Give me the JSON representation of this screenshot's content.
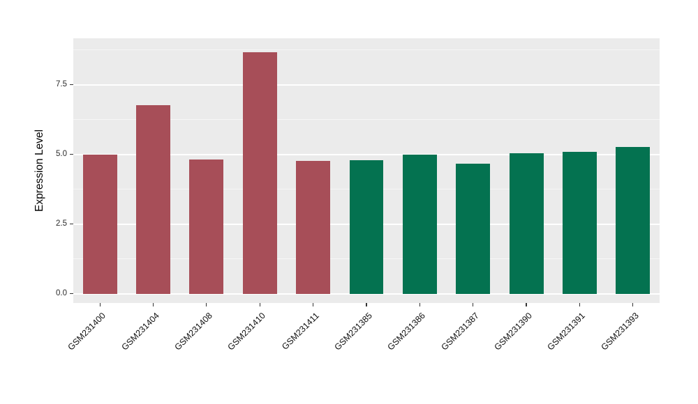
{
  "chart_data": {
    "type": "bar",
    "title": "",
    "xlabel": "",
    "ylabel": "Expression Level",
    "categories": [
      "GSM231400",
      "GSM231404",
      "GSM231408",
      "GSM231410",
      "GSM231411",
      "GSM231385",
      "GSM231386",
      "GSM231387",
      "GSM231390",
      "GSM231391",
      "GSM231393"
    ],
    "values": [
      5.0,
      6.78,
      4.82,
      8.68,
      4.77,
      4.8,
      5.0,
      4.66,
      5.05,
      5.1,
      5.26
    ],
    "bar_colors": [
      "#A74E58",
      "#A74E58",
      "#A74E58",
      "#A74E58",
      "#A74E58",
      "#047250",
      "#047250",
      "#047250",
      "#047250",
      "#047250",
      "#047250"
    ],
    "group_colors": {
      "left_group_maroon": "#A74E58",
      "right_group_green": "#047250"
    },
    "yticks": {
      "values": [
        0,
        2.5,
        5,
        7.5
      ],
      "labels": [
        "0.0",
        "2.5",
        "5.0",
        "7.5"
      ]
    },
    "yticks_minor": [
      1.25,
      3.75,
      6.25,
      8.75
    ],
    "ylim": [
      0,
      8.7
    ],
    "panel_range": [
      -0.33,
      9.17
    ],
    "layout": {
      "panel_bg": "#EBEBEB",
      "grid_major_color": "#FFFFFF",
      "grid_minor_color": "#F5F5F5",
      "tick_color": "#333333",
      "label_color": "#111111",
      "grid": "on",
      "legend": "none",
      "x_label_rotation_deg": -45
    }
  }
}
